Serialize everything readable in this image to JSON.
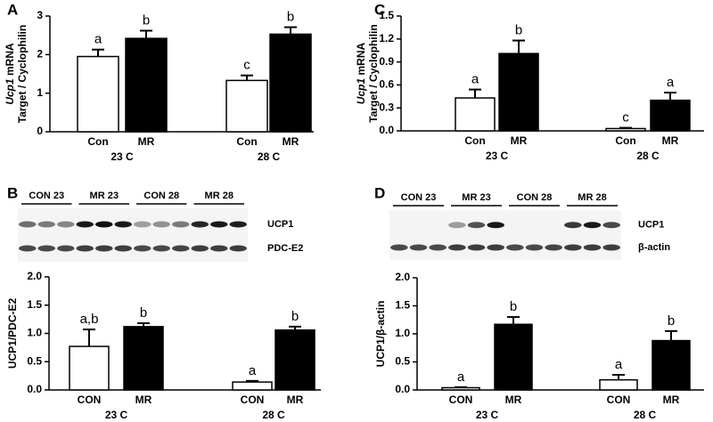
{
  "chart_data": [
    {
      "type": "bar",
      "panel": "A",
      "ylabel_gene": "Ucp1",
      "ylabel": [
        "mRNA",
        "Target / Cyclophilin"
      ],
      "groups": [
        "23 C",
        "28 C"
      ],
      "categories": [
        "Con",
        "MR",
        "Con",
        "MR"
      ],
      "values": [
        1.95,
        2.42,
        1.33,
        2.53
      ],
      "errors": [
        0.18,
        0.2,
        0.13,
        0.18
      ],
      "annotations": [
        "a",
        "b",
        "c",
        "b"
      ],
      "colors": [
        "#ffffff",
        "#000000",
        "#ffffff",
        "#000000"
      ],
      "ylim": [
        0,
        3
      ],
      "yticks": [
        0,
        1,
        2,
        3
      ]
    },
    {
      "type": "bar",
      "panel": "C",
      "ylabel_gene": "Ucp1",
      "ylabel": [
        "mRNA",
        "Target / Cyclophilin"
      ],
      "groups": [
        "23 C",
        "28 C"
      ],
      "categories": [
        "Con",
        "MR",
        "Con",
        "MR"
      ],
      "values": [
        0.43,
        1.01,
        0.03,
        0.4
      ],
      "errors": [
        0.11,
        0.17,
        0.01,
        0.1
      ],
      "annotations": [
        "a",
        "b",
        "c",
        "a"
      ],
      "colors": [
        "#ffffff",
        "#000000",
        "#ffffff",
        "#000000"
      ],
      "ylim": [
        0,
        1.5
      ],
      "yticks": [
        {
          "value": 0,
          "label": "0.0"
        },
        0.3,
        0.6,
        0.9,
        1.2,
        1.5
      ]
    },
    {
      "type": "bar",
      "panel": "B",
      "ylabel": [
        "UCP1/PDC-E2"
      ],
      "blot": {
        "lanes": [
          "CON 23",
          "MR 23",
          "CON 28",
          "MR 28"
        ],
        "bands": [
          "UCP1",
          "PDC-E2"
        ]
      },
      "groups": [
        "23 C",
        "28 C"
      ],
      "categories": [
        "CON",
        "MR",
        "CON",
        "MR"
      ],
      "values": [
        0.77,
        1.12,
        0.14,
        1.06
      ],
      "errors": [
        0.3,
        0.06,
        0.02,
        0.06
      ],
      "annotations": [
        "a,b",
        "b",
        "a",
        "b"
      ],
      "colors": [
        "#ffffff",
        "#000000",
        "#ffffff",
        "#000000"
      ],
      "ylim": [
        0,
        2
      ],
      "yticks": [
        {
          "value": 0,
          "label": "0.0"
        },
        0.5,
        {
          "value": 1,
          "label": "1.0"
        },
        1.5,
        {
          "value": 2,
          "label": "2.0"
        }
      ]
    },
    {
      "type": "bar",
      "panel": "D",
      "ylabel": [
        "UCP1/β-actin"
      ],
      "blot": {
        "lanes": [
          "CON 23",
          "MR 23",
          "CON 28",
          "MR 28"
        ],
        "bands": [
          "UCP1",
          "β-actin"
        ]
      },
      "groups": [
        "23 C",
        "28 C"
      ],
      "categories": [
        "CON",
        "MR",
        "CON",
        "MR"
      ],
      "values": [
        0.04,
        1.17,
        0.18,
        0.88
      ],
      "errors": [
        0.01,
        0.13,
        0.09,
        0.17
      ],
      "annotations": [
        "a",
        "b",
        "a",
        "b"
      ],
      "colors": [
        "#ffffff",
        "#000000",
        "#ffffff",
        "#000000"
      ],
      "ylim": [
        0,
        2
      ],
      "yticks": [
        {
          "value": 0,
          "label": "0.0"
        },
        0.5,
        {
          "value": 1,
          "label": "1.0"
        },
        1.5,
        {
          "value": 2,
          "label": "2.0"
        }
      ]
    }
  ]
}
